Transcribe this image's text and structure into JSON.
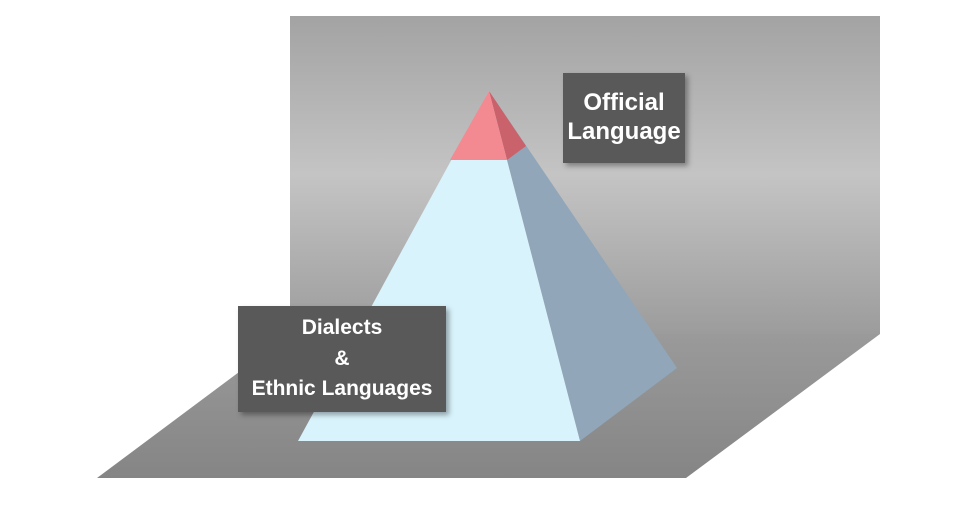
{
  "diagram": {
    "type": "pyramid",
    "colors": {
      "wall_top": "#a3a3a3",
      "wall_mid": "#c4c4c4",
      "wall_bottom": "#9c9c9c",
      "floor": "#8e8e8e",
      "pyramid_front": "#d9f3fc",
      "pyramid_side": "#91a6b8",
      "apex_front": "#f38a91",
      "apex_side": "#c9626a",
      "label_bg": "#595959",
      "label_text": "#ffffff"
    },
    "levels": [
      {
        "name": "apex",
        "label_lines": [
          "Official",
          "Language"
        ]
      },
      {
        "name": "base",
        "label_lines": [
          "Dialects",
          "&",
          "Ethnic Languages"
        ]
      }
    ]
  }
}
